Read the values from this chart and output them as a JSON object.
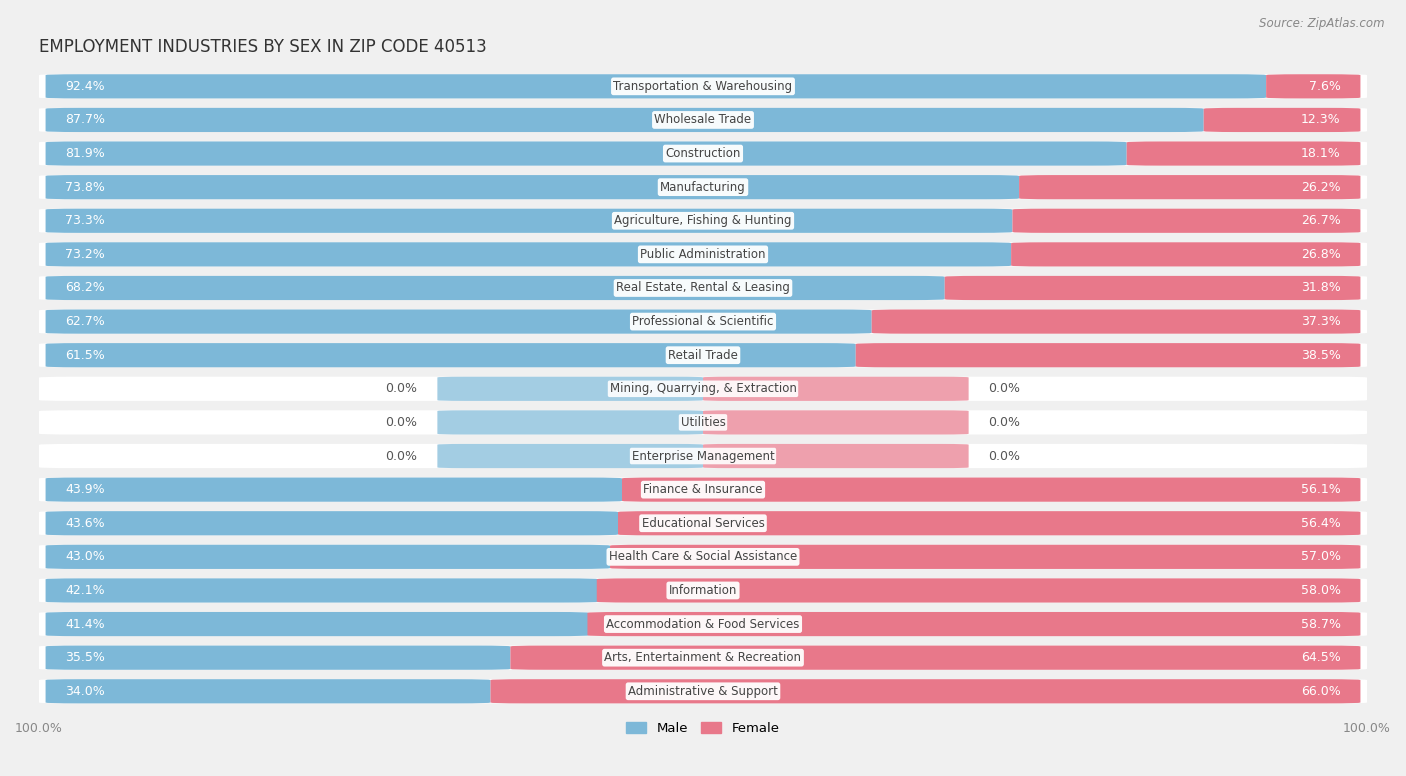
{
  "title": "EMPLOYMENT INDUSTRIES BY SEX IN ZIP CODE 40513",
  "source": "Source: ZipAtlas.com",
  "industries": [
    {
      "name": "Transportation & Warehousing",
      "male": 92.4,
      "female": 7.6
    },
    {
      "name": "Wholesale Trade",
      "male": 87.7,
      "female": 12.3
    },
    {
      "name": "Construction",
      "male": 81.9,
      "female": 18.1
    },
    {
      "name": "Manufacturing",
      "male": 73.8,
      "female": 26.2
    },
    {
      "name": "Agriculture, Fishing & Hunting",
      "male": 73.3,
      "female": 26.7
    },
    {
      "name": "Public Administration",
      "male": 73.2,
      "female": 26.8
    },
    {
      "name": "Real Estate, Rental & Leasing",
      "male": 68.2,
      "female": 31.8
    },
    {
      "name": "Professional & Scientific",
      "male": 62.7,
      "female": 37.3
    },
    {
      "name": "Retail Trade",
      "male": 61.5,
      "female": 38.5
    },
    {
      "name": "Mining, Quarrying, & Extraction",
      "male": 0.0,
      "female": 0.0
    },
    {
      "name": "Utilities",
      "male": 0.0,
      "female": 0.0
    },
    {
      "name": "Enterprise Management",
      "male": 0.0,
      "female": 0.0
    },
    {
      "name": "Finance & Insurance",
      "male": 43.9,
      "female": 56.1
    },
    {
      "name": "Educational Services",
      "male": 43.6,
      "female": 56.4
    },
    {
      "name": "Health Care & Social Assistance",
      "male": 43.0,
      "female": 57.0
    },
    {
      "name": "Information",
      "male": 42.1,
      "female": 58.0
    },
    {
      "name": "Accommodation & Food Services",
      "male": 41.4,
      "female": 58.7
    },
    {
      "name": "Arts, Entertainment & Recreation",
      "male": 35.5,
      "female": 64.5
    },
    {
      "name": "Administrative & Support",
      "male": 34.0,
      "female": 66.0
    }
  ],
  "male_color": "#7db8d8",
  "female_color": "#e8788a",
  "bg_color": "#f0f0f0",
  "row_bg_color": "#ffffff",
  "bar_bg_color": "#e0e0e0",
  "label_text_color": "#444444",
  "pct_inside_color": "#ffffff",
  "pct_outside_color": "#555555",
  "title_fontsize": 12,
  "bar_label_fontsize": 9,
  "name_label_fontsize": 8.5,
  "source_fontsize": 8.5,
  "axis_tick_fontsize": 9
}
